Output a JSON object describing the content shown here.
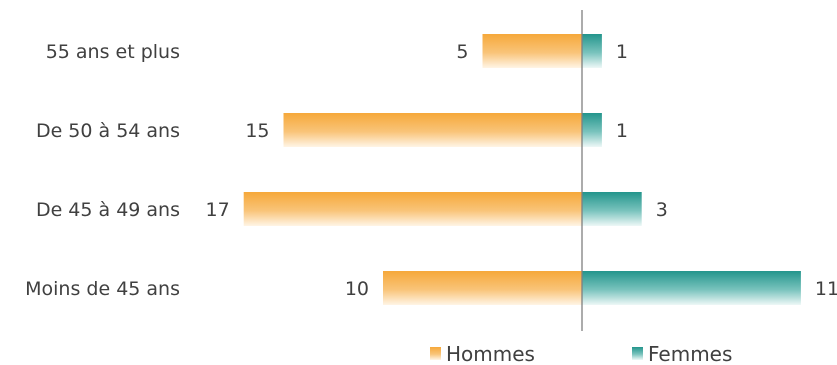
{
  "chart_data": {
    "type": "bar",
    "orientation": "horizontal",
    "layout": "diverging",
    "categories": [
      "55 ans et plus",
      "De 50 à 54 ans",
      "De 45 à 49 ans",
      "Moins de 45 ans"
    ],
    "series": [
      {
        "name": "Hommes",
        "values": [
          5,
          15,
          17,
          10
        ],
        "color": "#f7b14a",
        "direction": "left"
      },
      {
        "name": "Femmes",
        "values": [
          1,
          1,
          3,
          11
        ],
        "color": "#2e9e96",
        "direction": "right"
      }
    ],
    "title": "",
    "xlabel": "",
    "ylabel": "",
    "grid": false,
    "legend_position": "bottom"
  }
}
